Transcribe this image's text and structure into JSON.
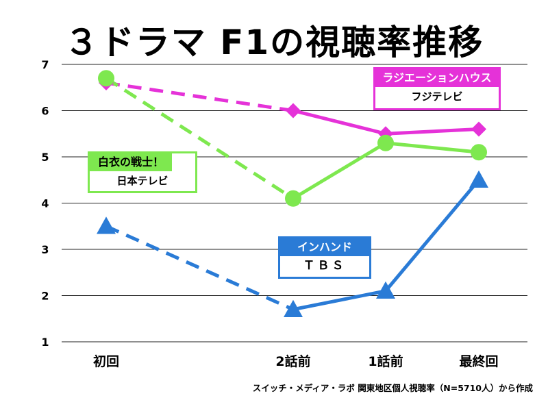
{
  "title": "３ドラマ F1の視聴率推移",
  "source": "スイッチ・メディア・ラボ 関東地区個人視聴率（N=5710人）から作成",
  "legends": {
    "radiation": {
      "title": "ラジエーションハウス",
      "network": "フジテレビ"
    },
    "hakui": {
      "title": "白衣の戦士！",
      "network": "日本テレビ"
    },
    "inhand": {
      "title": "インハンド",
      "network": "ＴＢＳ"
    }
  },
  "chart_data": {
    "type": "line",
    "categories": [
      "初回",
      "2話前",
      "1話前",
      "最終回"
    ],
    "ylim": [
      1,
      7
    ],
    "yticks": [
      "1",
      "2",
      "3",
      "4",
      "5",
      "6",
      "7"
    ],
    "grid": true,
    "series": [
      {
        "name": "ラジエーションハウス",
        "values": [
          6.6,
          6.0,
          5.5,
          5.6
        ],
        "color": "#e532d8",
        "marker": "diamond",
        "dashed_first_segment": true
      },
      {
        "name": "白衣の戦士！",
        "values": [
          6.7,
          4.1,
          5.3,
          5.1
        ],
        "color": "#7ee84f",
        "marker": "circle",
        "dashed_first_segment": true
      },
      {
        "name": "インハンド",
        "values": [
          3.5,
          1.7,
          2.1,
          4.5
        ],
        "color": "#2a7bd6",
        "marker": "triangle",
        "dashed_first_segment": true
      }
    ]
  }
}
